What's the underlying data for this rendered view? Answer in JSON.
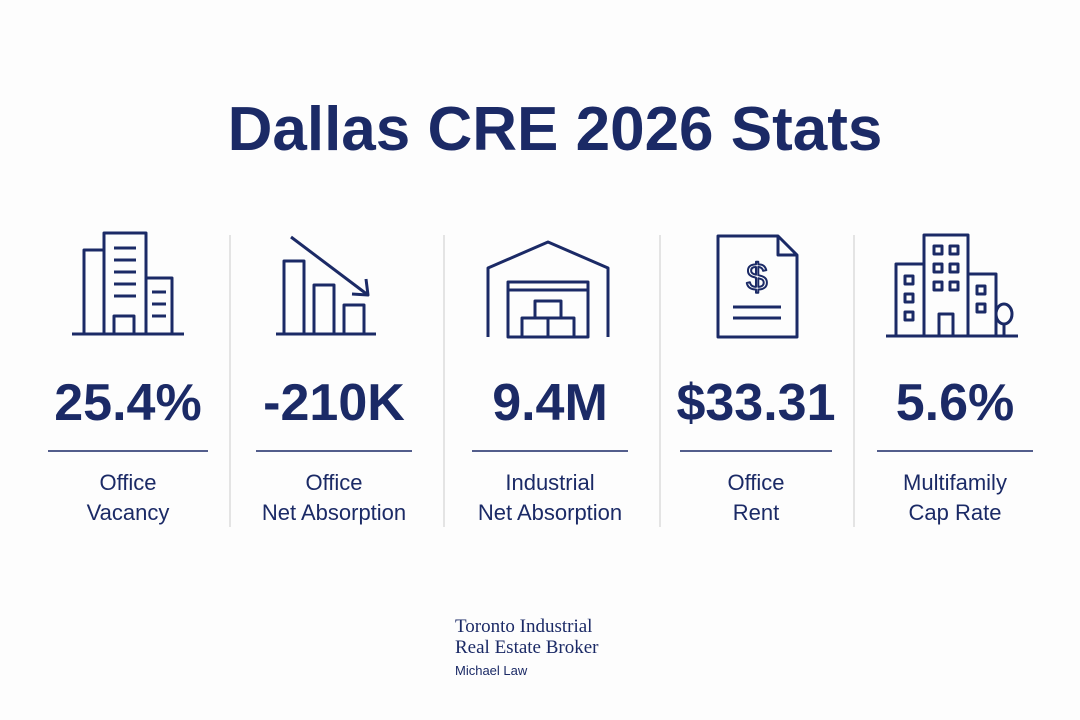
{
  "title": "Dallas CRE 2026 Stats",
  "stats": [
    {
      "value": "25.4%",
      "label": [
        "Office",
        "Vacancy"
      ]
    },
    {
      "value": "-210K",
      "label": [
        "Office",
        "Net Absorption"
      ]
    },
    {
      "value": "9.4M",
      "label": [
        "Industrial",
        "Net Absorption"
      ]
    },
    {
      "value": "$33.31",
      "label": [
        "Office",
        "Rent"
      ]
    },
    {
      "value": "5.6%",
      "label": [
        "Multifamily",
        "Cap Rate"
      ]
    }
  ],
  "footer": {
    "brand": [
      "Toronto Industrial",
      "Real Estate Broker"
    ],
    "name": "Michael Law"
  }
}
